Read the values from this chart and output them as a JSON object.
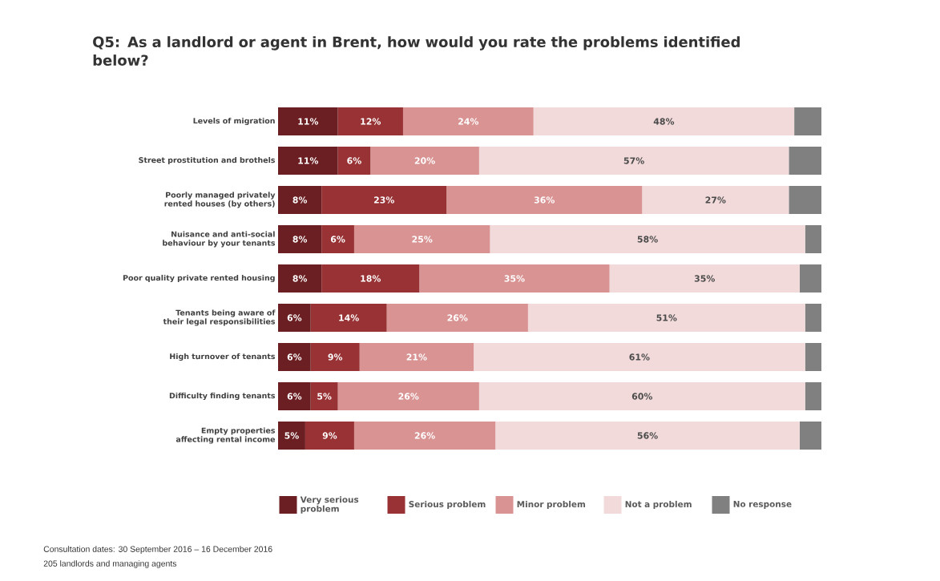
{
  "chart_data": {
    "type": "bar",
    "orientation": "horizontal",
    "stacked": true,
    "title": "Q5: As a landlord or agent in Brent, how would you rate the problems identified below?",
    "categories": [
      "Levels of migration",
      "Street prostitution and brothels",
      "Poorly managed privately rented houses (by others)",
      "Nuisance and anti-social behaviour by your tenants",
      "Poor quality private rented housing",
      "Tenants being aware of their legal responsibilities",
      "High turnover of tenants",
      "Difficulty finding tenants",
      "Empty properties affecting rental income"
    ],
    "series": [
      {
        "name": "Very serious problem",
        "color": "#6b1f22",
        "values": [
          11,
          11,
          8,
          8,
          8,
          6,
          6,
          6,
          5
        ],
        "value_labels": [
          "11%",
          "11%",
          "8%",
          "8%",
          "8%",
          "6%",
          "6%",
          "6%",
          "5%"
        ]
      },
      {
        "name": "Serious problem",
        "color": "#983234",
        "values": [
          12,
          6,
          23,
          6,
          18,
          14,
          9,
          5,
          9
        ],
        "value_labels": [
          "12%",
          "6%",
          "23%",
          "6%",
          "18%",
          "14%",
          "9%",
          "5%",
          "9%"
        ]
      },
      {
        "name": "Minor problem",
        "color": "#d99393",
        "values": [
          24,
          20,
          36,
          25,
          35,
          26,
          21,
          26,
          26
        ],
        "value_labels": [
          "24%",
          "20%",
          "36%",
          "25%",
          "35%",
          "26%",
          "21%",
          "26%",
          "26%"
        ]
      },
      {
        "name": "Not a problem",
        "color": "#f2dada",
        "values": [
          48,
          57,
          27,
          58,
          35,
          51,
          61,
          60,
          56
        ],
        "value_labels": [
          "48%",
          "57%",
          "27%",
          "58%",
          "35%",
          "51%",
          "61%",
          "60%",
          "56%"
        ]
      },
      {
        "name": "No response",
        "color": "#808080",
        "values": [
          5,
          6,
          6,
          3,
          4,
          3,
          3,
          3,
          4
        ]
      }
    ],
    "legend": "bottom",
    "annotations": [
      "Consultation dates: 30 September 2016 – 16 December 2016",
      "205 landlords and managing agents"
    ]
  }
}
